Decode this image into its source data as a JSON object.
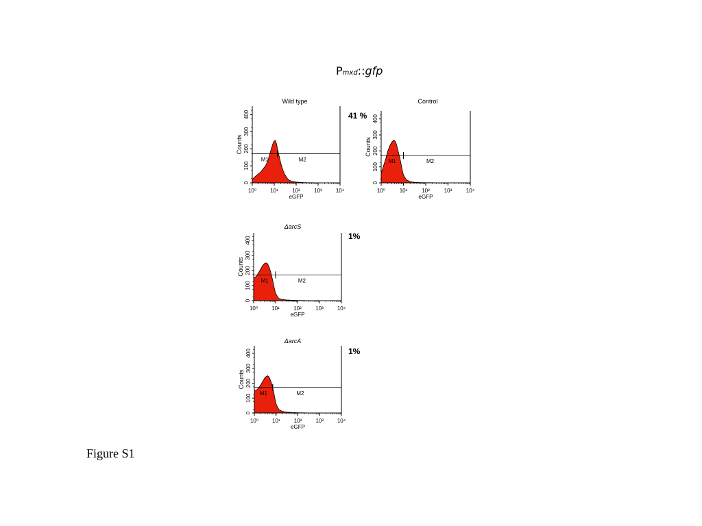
{
  "header": {
    "prefix": "P",
    "subscript": "mxd",
    "suffix": "::",
    "gene": "gfp"
  },
  "caption": "Figure S1",
  "chart_data": [
    {
      "type": "area",
      "title": "Wild type",
      "percent_label": "41 %",
      "xlabel": "eGFP",
      "ylabel": "Counts",
      "x_scale": "log",
      "xlim": [
        1,
        10000
      ],
      "ylim": [
        0,
        450
      ],
      "x_ticks": [
        1,
        10,
        100,
        1000,
        10000
      ],
      "y_ticks": [
        0,
        100,
        200,
        300,
        400
      ],
      "gates": [
        {
          "label": "M1",
          "range": [
            1,
            14
          ]
        },
        {
          "label": "M2",
          "range": [
            14,
            10000
          ]
        }
      ],
      "fill_color": "#e8200c",
      "series": [
        {
          "x": [
            1,
            1.3,
            1.6,
            2,
            2.5,
            3,
            4,
            5,
            6,
            7,
            8,
            9,
            10,
            11,
            12,
            13,
            14,
            16,
            18,
            20,
            25,
            30,
            40,
            50,
            70,
            100,
            150,
            200,
            300,
            500,
            1000,
            10000
          ],
          "y": [
            20,
            35,
            45,
            55,
            65,
            80,
            100,
            125,
            160,
            190,
            215,
            235,
            245,
            250,
            240,
            225,
            200,
            170,
            140,
            115,
            75,
            50,
            25,
            14,
            8,
            5,
            3,
            2,
            1,
            1,
            0,
            0
          ]
        }
      ]
    },
    {
      "type": "area",
      "title": "Control",
      "percent_label": "",
      "xlabel": "eGFP",
      "ylabel": "Counts",
      "x_scale": "log",
      "xlim": [
        1,
        10000
      ],
      "ylim": [
        0,
        450
      ],
      "x_ticks": [
        1,
        10,
        100,
        1000,
        10000
      ],
      "y_ticks": [
        0,
        100,
        200,
        300,
        400
      ],
      "gates": [
        {
          "label": "M1",
          "range": [
            1,
            10
          ]
        },
        {
          "label": "M2",
          "range": [
            10,
            10000
          ]
        }
      ],
      "fill_color": "#e8200c",
      "series": [
        {
          "x": [
            1,
            1.3,
            1.6,
            2,
            2.5,
            3,
            3.5,
            4,
            4.5,
            5,
            6,
            7,
            8,
            9,
            10,
            12,
            14,
            20,
            30,
            50,
            100,
            200,
            500,
            1000,
            10000
          ],
          "y": [
            60,
            110,
            150,
            200,
            235,
            255,
            265,
            265,
            255,
            235,
            190,
            150,
            110,
            75,
            50,
            30,
            18,
            8,
            4,
            2,
            1,
            1,
            0,
            0,
            0
          ]
        }
      ]
    },
    {
      "type": "area",
      "title": "ΔarcS",
      "percent_label": "1%",
      "xlabel": "eGFP",
      "ylabel": "Counts",
      "x_scale": "log",
      "xlim": [
        1,
        10000
      ],
      "ylim": [
        0,
        450
      ],
      "x_ticks": [
        1,
        10,
        100,
        1000,
        10000
      ],
      "y_ticks": [
        0,
        100,
        200,
        300,
        400
      ],
      "gates": [
        {
          "label": "M1",
          "range": [
            1,
            10
          ]
        },
        {
          "label": "M2",
          "range": [
            10,
            10000
          ]
        }
      ],
      "fill_color": "#e8200c",
      "series": [
        {
          "x": [
            1,
            1.3,
            1.6,
            2,
            2.5,
            3,
            3.5,
            4,
            4.5,
            5,
            6,
            7,
            8,
            9,
            10,
            12,
            14,
            20,
            30,
            50,
            100,
            200,
            500,
            1000,
            10000
          ],
          "y": [
            150,
            160,
            180,
            205,
            230,
            245,
            250,
            250,
            240,
            225,
            190,
            150,
            110,
            75,
            50,
            28,
            15,
            8,
            5,
            3,
            2,
            1,
            0,
            0,
            0
          ]
        }
      ]
    },
    {
      "type": "area",
      "title": "ΔarcA",
      "percent_label": "1%",
      "xlabel": "eGFP",
      "ylabel": "Counts",
      "x_scale": "log",
      "xlim": [
        1,
        10000
      ],
      "ylim": [
        0,
        450
      ],
      "x_ticks": [
        1,
        10,
        100,
        1000,
        10000
      ],
      "y_ticks": [
        0,
        100,
        200,
        300,
        400
      ],
      "gates": [
        {
          "label": "M1",
          "range": [
            1,
            7
          ]
        },
        {
          "label": "M2",
          "range": [
            7,
            10000
          ]
        }
      ],
      "fill_color": "#e8200c",
      "series": [
        {
          "x": [
            1,
            1.3,
            1.6,
            2,
            2.5,
            3,
            3.5,
            4,
            4.5,
            5,
            6,
            7,
            8,
            9,
            10,
            12,
            14,
            20,
            30,
            50,
            100,
            200,
            500,
            1000,
            10000
          ],
          "y": [
            150,
            155,
            170,
            190,
            215,
            235,
            245,
            250,
            245,
            235,
            205,
            170,
            130,
            90,
            60,
            35,
            20,
            10,
            6,
            3,
            2,
            1,
            0,
            0,
            0
          ]
        }
      ]
    }
  ]
}
